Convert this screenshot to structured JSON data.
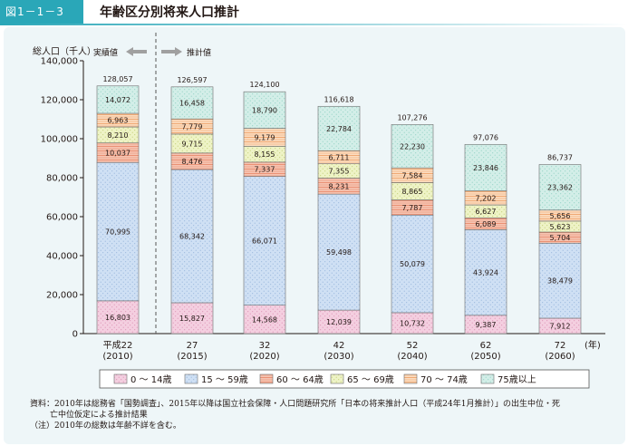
{
  "header": {
    "figure_number": "図1－1－3",
    "title": "年齢区分別将来人口推計"
  },
  "chart_data": {
    "type": "bar",
    "stacked": true,
    "ylabel": "総人口（千人）",
    "xlabel": "(年)",
    "ylim": [
      0,
      140000
    ],
    "yticks": [
      "0",
      "20,000",
      "40,000",
      "60,000",
      "80,000",
      "100,000",
      "120,000",
      "140,000"
    ],
    "grid": false,
    "legend_position": "bottom",
    "section_labels": {
      "actual": "実績値",
      "projected": "推計値"
    },
    "categories": [
      {
        "label": "平成22",
        "sub": "(2010)"
      },
      {
        "label": "27",
        "sub": "(2015)"
      },
      {
        "label": "32",
        "sub": "(2020)"
      },
      {
        "label": "42",
        "sub": "(2030)"
      },
      {
        "label": "52",
        "sub": "(2040)"
      },
      {
        "label": "62",
        "sub": "(2050)"
      },
      {
        "label": "72",
        "sub": "(2060)"
      }
    ],
    "series": [
      {
        "name": "0 ～ 14歳",
        "color": "#f4cfe0",
        "values": [
          16803,
          15827,
          14568,
          12039,
          10732,
          9387,
          7912
        ]
      },
      {
        "name": "15 ～ 59歳",
        "color": "#cfe0f4",
        "values": [
          70995,
          68342,
          66071,
          59498,
          50079,
          43924,
          38479
        ]
      },
      {
        "name": "60 ～ 64歳",
        "color": "#f6c4b2",
        "values": [
          10037,
          8476,
          7337,
          8231,
          7787,
          6089,
          5704
        ]
      },
      {
        "name": "65 ～ 69歳",
        "color": "#eef3c6",
        "values": [
          8210,
          9715,
          8155,
          7355,
          8865,
          6627,
          5623
        ]
      },
      {
        "name": "70 ～ 74歳",
        "color": "#fbdcc0",
        "values": [
          6963,
          7779,
          9179,
          6711,
          7584,
          7202,
          5656
        ]
      },
      {
        "name": "75歳以上",
        "color": "#d3eee8",
        "values": [
          14072,
          16458,
          18790,
          22784,
          22230,
          23846,
          23362
        ]
      }
    ],
    "totals": [
      "128,057",
      "126,597",
      "124,100",
      "116,618",
      "107,276",
      "97,076",
      "86,737"
    ]
  },
  "footnotes": {
    "line1": "資料：2010年は総務省「国勢調査」、2015年以降は国立社会保障・人口問題研究所「日本の将来推計人口（平成24年1月推計）」の出生中位・死",
    "line2": "亡中位仮定による推計結果",
    "line3": "（注）2010年の総数は年齢不詳を含む。"
  }
}
